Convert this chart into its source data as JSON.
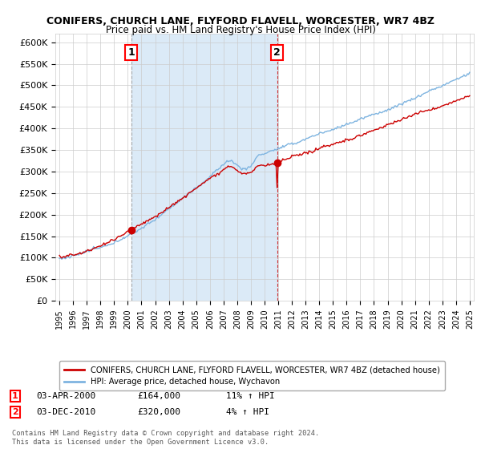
{
  "title": "CONIFERS, CHURCH LANE, FLYFORD FLAVELL, WORCESTER, WR7 4BZ",
  "subtitle": "Price paid vs. HM Land Registry's House Price Index (HPI)",
  "ylim": [
    0,
    620000
  ],
  "yticks": [
    0,
    50000,
    100000,
    150000,
    200000,
    250000,
    300000,
    350000,
    400000,
    450000,
    500000,
    550000,
    600000
  ],
  "ytick_labels": [
    "£0",
    "£50K",
    "£100K",
    "£150K",
    "£200K",
    "£250K",
    "£300K",
    "£350K",
    "£400K",
    "£450K",
    "£500K",
    "£550K",
    "£600K"
  ],
  "x_start_year": 1995,
  "x_end_year": 2025,
  "sale1_year": 2000.25,
  "sale1_value": 164000,
  "sale1_label": "1",
  "sale1_date": "03-APR-2000",
  "sale1_price": "£164,000",
  "sale1_hpi": "11% ↑ HPI",
  "sale2_year": 2010.92,
  "sale2_value": 320000,
  "sale2_label": "2",
  "sale2_date": "03-DEC-2010",
  "sale2_price": "£320,000",
  "sale2_hpi": "4% ↑ HPI",
  "hpi_line_color": "#7eb4e0",
  "price_line_color": "#cc0000",
  "sale1_vline_color": "#999999",
  "sale2_vline_color": "#cc0000",
  "shade_color": "#dbeaf7",
  "background_color": "#ffffff",
  "grid_color": "#cccccc",
  "legend_house_label": "CONIFERS, CHURCH LANE, FLYFORD FLAVELL, WORCESTER, WR7 4BZ (detached house)",
  "legend_hpi_label": "HPI: Average price, detached house, Wychavon",
  "footer": "Contains HM Land Registry data © Crown copyright and database right 2024.\nThis data is licensed under the Open Government Licence v3.0."
}
